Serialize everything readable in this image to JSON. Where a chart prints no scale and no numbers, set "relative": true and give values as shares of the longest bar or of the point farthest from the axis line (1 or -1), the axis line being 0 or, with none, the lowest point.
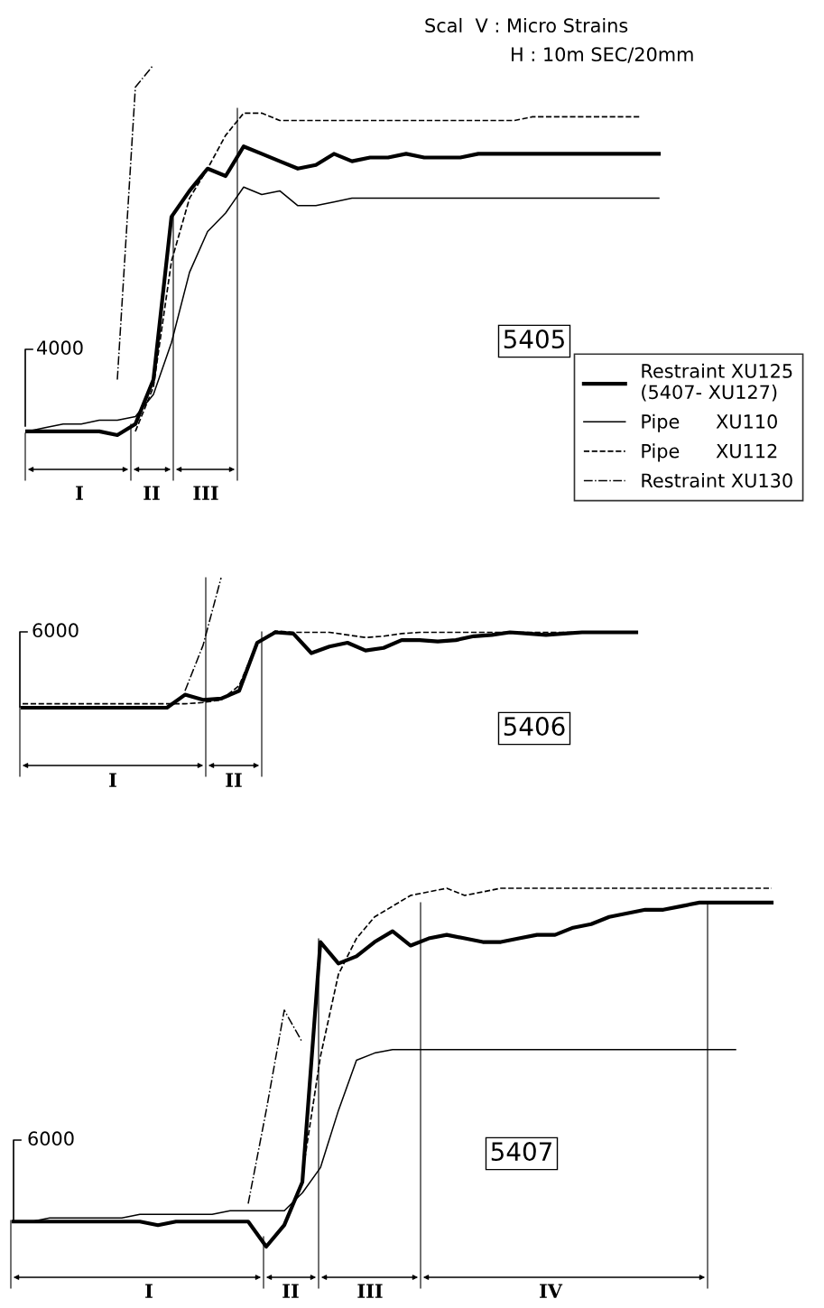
{
  "chart_data": [
    {
      "type": "line",
      "relative": true,
      "legend": "bottom right",
      "marker": "none",
      "categories": [
        null,
        null,
        null,
        null,
        null,
        null,
        null,
        null,
        null,
        null,
        null,
        null,
        null,
        null,
        null,
        null,
        null,
        null,
        null,
        null,
        null,
        null,
        null,
        null,
        null,
        null,
        null,
        null,
        null,
        null,
        null,
        null,
        null,
        null,
        null,
        null
      ],
      "series": [
        {
          "name": "Restraint XU125\n(5407- XU127)",
          "color": "#000000",
          "line_style": "solid",
          "values": [
            0.01,
            0.01,
            0.01,
            0.01,
            0.01,
            0,
            0.03,
            0.15,
            0.59,
            0.66,
            0.72,
            0.7,
            0.78,
            0.76,
            0.74,
            0.72,
            0.73,
            0.76,
            0.74,
            0.75,
            0.75,
            0.76,
            0.75,
            0.75,
            0.75,
            0.76,
            0.76,
            0.76,
            0.76,
            0.76,
            0.76,
            0.76,
            0.76,
            0.76,
            0.76,
            0.76
          ]
        },
        {
          "name": "Pipe      XU110",
          "color": "#000000",
          "line_style": "solid",
          "values": [
            0.01,
            0.02,
            0.03,
            0.03,
            0.04,
            0.04,
            0.05,
            0.11,
            0.25,
            0.44,
            0.55,
            0.6,
            0.67,
            0.65,
            0.66,
            0.62,
            0.62,
            0.63,
            0.64,
            0.64,
            0.64,
            0.64,
            0.64,
            0.64,
            0.64,
            0.64,
            0.64,
            0.64,
            0.64,
            0.64,
            0.64,
            0.64,
            0.64,
            0.64,
            0.64,
            0.64
          ]
        },
        {
          "name": "Pipe      XU112",
          "color": "#000000",
          "line_style": "dashed",
          "values": [
            null,
            null,
            null,
            null,
            null,
            null,
            0.01,
            0.13,
            0.47,
            0.64,
            0.72,
            0.81,
            0.87,
            0.87,
            0.85,
            0.85,
            0.85,
            0.85,
            0.85,
            0.85,
            0.85,
            0.85,
            0.85,
            0.85,
            0.85,
            0.85,
            0.85,
            0.85,
            0.86,
            0.86,
            0.86,
            0.86,
            0.86,
            0.86,
            0.86,
            null
          ]
        },
        {
          "name": "Restraint XU130",
          "color": "#000000",
          "line_style": "dashdot",
          "values": [
            null,
            null,
            null,
            null,
            null,
            0.15,
            0.94,
            1.0,
            null,
            null,
            null,
            null,
            null,
            null,
            null,
            null,
            null,
            null,
            null,
            null,
            null,
            null,
            null,
            null,
            null,
            null,
            null,
            null,
            null,
            null,
            null,
            null,
            null,
            null,
            null,
            null
          ]
        }
      ],
      "annotations": [
        "Scal  V : Micro Strains",
        "H : 10m SEC/20mm",
        "4000",
        "5405",
        "I",
        "II",
        "III"
      ]
    },
    {
      "type": "line",
      "relative": true,
      "marker": "none",
      "categories": [
        null,
        null,
        null,
        null,
        null,
        null,
        null,
        null,
        null,
        null,
        null,
        null,
        null,
        null,
        null,
        null,
        null,
        null,
        null,
        null,
        null,
        null,
        null,
        null,
        null,
        null,
        null,
        null,
        null,
        null,
        null,
        null,
        null,
        null,
        null
      ],
      "series": [
        {
          "color": "#000000",
          "line_style": "dashed",
          "values": [
            0.03,
            0.03,
            0.03,
            0.03,
            0.03,
            0.03,
            0.03,
            0.03,
            0.03,
            0.03,
            0.04,
            0.06,
            0.17,
            0.5,
            0.59,
            0.58,
            0.58,
            0.58,
            0.56,
            0.54,
            0.55,
            0.57,
            0.58,
            0.58,
            0.58,
            0.58,
            0.58,
            0.58,
            0.58,
            0.58,
            0.58,
            0.58,
            0.58,
            0.58,
            0.58
          ]
        },
        {
          "color": "#000000",
          "line_style": "dashdot",
          "values": [
            null,
            null,
            null,
            null,
            null,
            null,
            null,
            null,
            null,
            0.13,
            0.48,
            1.0,
            null,
            null,
            null,
            null,
            null,
            null,
            null,
            null,
            null,
            null,
            null,
            null,
            null,
            null,
            null,
            null,
            null,
            null,
            null,
            null,
            null,
            null,
            null
          ]
        },
        {
          "color": "#000000",
          "line_style": "solid",
          "values": [
            0,
            0,
            0,
            0,
            0,
            0,
            0,
            0,
            0,
            0.1,
            0.06,
            0.07,
            0.13,
            0.5,
            0.58,
            0.57,
            0.42,
            0.47,
            0.5,
            0.44,
            0.46,
            0.52,
            0.52,
            0.51,
            0.52,
            0.55,
            0.56,
            0.58,
            0.57,
            0.56,
            0.57,
            0.58,
            0.58,
            0.58,
            0.58
          ]
        }
      ],
      "annotations": [
        "6000",
        "5406",
        "I",
        "II"
      ]
    },
    {
      "type": "line",
      "relative": true,
      "marker": "none",
      "categories": [
        null,
        null,
        null,
        null,
        null,
        null,
        null,
        null,
        null,
        null,
        null,
        null,
        null,
        null,
        null,
        null,
        null,
        null,
        null,
        null,
        null,
        null,
        null,
        null,
        null,
        null,
        null,
        null,
        null,
        null,
        null,
        null,
        null,
        null,
        null,
        null,
        null,
        null,
        null,
        null,
        null,
        null,
        null
      ],
      "series": [
        {
          "color": "#000000",
          "line_style": "solid",
          "values": [
            0.07,
            0.07,
            0.07,
            0.07,
            0.07,
            0.07,
            0.07,
            0.07,
            0.06,
            0.07,
            0.07,
            0.07,
            0.07,
            0.07,
            0,
            0.06,
            0.18,
            0.85,
            0.79,
            0.81,
            0.85,
            0.88,
            0.84,
            0.86,
            0.87,
            0.86,
            0.85,
            0.85,
            0.86,
            0.87,
            0.87,
            0.89,
            0.9,
            0.92,
            0.93,
            0.94,
            0.94,
            0.95,
            0.96,
            0.96,
            0.96,
            0.96,
            0.96
          ]
        },
        {
          "color": "#000000",
          "line_style": "solid",
          "values": [
            0.07,
            0.07,
            0.08,
            0.08,
            0.08,
            0.08,
            0.08,
            0.09,
            0.09,
            0.09,
            0.09,
            0.09,
            0.1,
            0.1,
            0.1,
            0.1,
            0.15,
            0.22,
            0.38,
            0.52,
            0.54,
            0.55,
            0.55,
            0.55,
            0.55,
            0.55,
            0.55,
            0.55,
            0.55,
            0.55,
            0.55,
            0.55,
            0.55,
            0.55,
            0.55,
            0.55,
            0.55,
            0.55,
            0.55,
            0.55,
            0.55,
            null,
            null
          ]
        },
        {
          "color": "#000000",
          "line_style": "dashed",
          "values": [
            null,
            null,
            null,
            null,
            null,
            null,
            null,
            null,
            null,
            null,
            null,
            null,
            null,
            null,
            null,
            null,
            0.2,
            0.53,
            0.76,
            0.86,
            0.92,
            0.95,
            0.98,
            0.99,
            1.0,
            0.98,
            0.99,
            1.0,
            1.0,
            1.0,
            1.0,
            1.0,
            1.0,
            1.0,
            1.0,
            1.0,
            1.0,
            1.0,
            1.0,
            1.0,
            1.0,
            1.0,
            1.0
          ]
        },
        {
          "color": "#000000",
          "line_style": "dashdot",
          "values": [
            null,
            null,
            null,
            null,
            null,
            null,
            null,
            null,
            null,
            null,
            null,
            null,
            null,
            0.12,
            0.38,
            0.66,
            0.57,
            null,
            null,
            null,
            null,
            null,
            null,
            null,
            null,
            null,
            null,
            null,
            null,
            null,
            null,
            null,
            null,
            null,
            null,
            null,
            null,
            null,
            null,
            null,
            null,
            null,
            null
          ]
        }
      ],
      "annotations": [
        "6000",
        "5407",
        "I",
        "II",
        "III",
        "IV"
      ]
    }
  ]
}
